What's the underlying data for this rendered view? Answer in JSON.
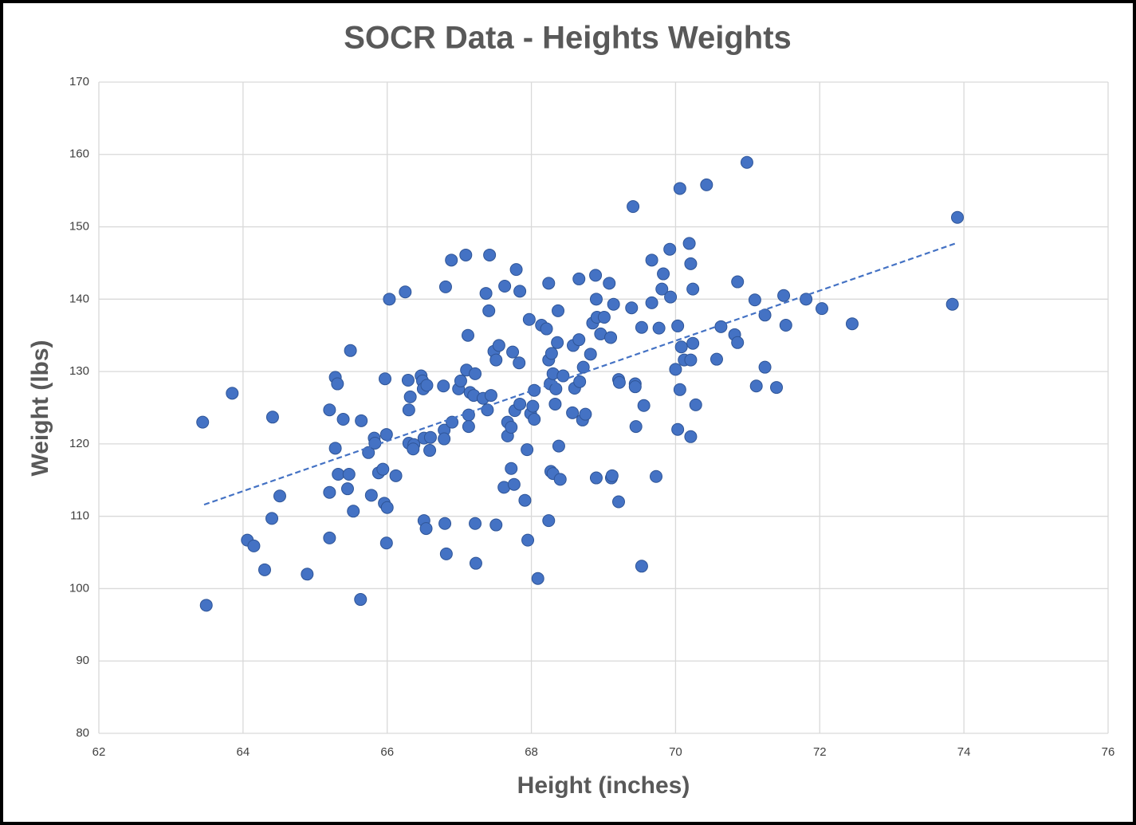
{
  "chart_data": {
    "type": "scatter",
    "title": "SOCR Data - Heights Weights",
    "x_label": "Height (inches)",
    "y_label": "Weight (lbs)",
    "color": "#4472c4",
    "grid": true,
    "xlim": [
      62,
      76
    ],
    "xticks": [
      62,
      64,
      66,
      68,
      70,
      72,
      74,
      76
    ],
    "ylim": [
      80,
      170
    ],
    "yticks": [
      80,
      90,
      100,
      110,
      120,
      130,
      140,
      150,
      160,
      170
    ],
    "x": [
      63.44,
      63.49,
      63.85,
      64.06,
      64.15,
      64.3,
      64.4,
      64.41,
      64.51,
      64.89,
      65.2,
      65.2,
      65.2,
      65.28,
      65.31,
      65.28,
      65.32,
      65.39,
      65.45,
      65.47,
      65.49,
      65.53,
      65.63,
      65.64,
      65.74,
      65.78,
      65.82,
      65.83,
      65.88,
      65.94,
      65.96,
      65.97,
      65.99,
      66.0,
      65.99,
      66.03,
      66.12,
      66.25,
      66.29,
      66.3,
      66.32,
      66.3,
      66.37,
      66.36,
      66.47,
      66.49,
      66.5,
      66.51,
      66.55,
      66.51,
      66.54,
      66.6,
      66.59,
      66.78,
      66.79,
      66.79,
      66.8,
      66.81,
      66.82,
      66.89,
      66.9,
      66.99,
      67.02,
      67.09,
      67.1,
      67.12,
      67.13,
      67.13,
      67.15,
      67.2,
      67.22,
      67.22,
      67.23,
      67.33,
      67.37,
      67.39,
      67.41,
      67.42,
      67.44,
      67.48,
      67.51,
      67.51,
      67.55,
      67.62,
      67.63,
      67.67,
      67.67,
      67.72,
      67.72,
      67.74,
      67.76,
      67.77,
      67.79,
      67.83,
      67.84,
      67.84,
      67.91,
      67.94,
      67.95,
      67.97,
      67.99,
      68.02,
      68.04,
      68.04,
      68.09,
      68.14,
      68.21,
      68.24,
      68.24,
      68.24,
      68.26,
      68.27,
      68.28,
      68.3,
      68.3,
      68.33,
      68.34,
      68.36,
      68.37,
      68.38,
      68.4,
      68.44,
      68.57,
      68.58,
      68.6,
      68.66,
      68.66,
      68.67,
      68.71,
      68.72,
      68.75,
      68.82,
      68.85,
      68.89,
      68.9,
      68.9,
      68.91,
      68.96,
      69.01,
      69.08,
      69.1,
      69.11,
      69.12,
      69.14,
      69.21,
      69.21,
      69.22,
      69.39,
      69.41,
      69.44,
      69.45,
      69.44,
      69.53,
      69.53,
      69.56,
      69.67,
      69.67,
      69.73,
      69.77,
      69.81,
      69.83,
      69.92,
      69.93,
      70.0,
      70.03,
      70.03,
      70.06,
      70.06,
      70.08,
      70.12,
      70.19,
      70.21,
      70.21,
      70.21,
      70.24,
      70.24,
      70.28,
      70.43,
      70.57,
      70.63,
      70.82,
      70.86,
      70.86,
      70.99,
      71.1,
      71.12,
      71.24,
      71.24,
      71.4,
      71.5,
      71.53,
      71.81,
      72.03,
      72.45,
      73.84,
      73.91
    ],
    "values": [
      123.0,
      97.7,
      127.0,
      106.7,
      105.9,
      102.6,
      109.7,
      123.7,
      112.8,
      102.0,
      124.7,
      113.3,
      107.0,
      129.2,
      128.3,
      119.4,
      115.8,
      123.4,
      113.8,
      115.8,
      132.9,
      110.7,
      98.5,
      123.2,
      118.8,
      112.9,
      120.8,
      120.1,
      116.0,
      116.5,
      111.8,
      129.0,
      121.3,
      111.2,
      106.3,
      140.0,
      115.6,
      141.0,
      128.8,
      124.7,
      126.5,
      120.1,
      119.9,
      119.3,
      129.4,
      128.7,
      127.6,
      120.8,
      128.1,
      109.4,
      108.3,
      120.9,
      119.1,
      128.0,
      121.9,
      120.7,
      109.0,
      141.7,
      104.8,
      145.4,
      123.0,
      127.6,
      128.7,
      146.1,
      130.2,
      135.0,
      124.0,
      122.4,
      127.1,
      126.7,
      129.7,
      109.0,
      103.5,
      126.3,
      140.8,
      124.7,
      138.4,
      146.1,
      126.7,
      132.8,
      131.6,
      108.8,
      133.6,
      114.0,
      141.8,
      123.0,
      121.1,
      122.3,
      116.6,
      132.7,
      114.4,
      124.6,
      144.1,
      131.2,
      141.1,
      125.5,
      112.2,
      119.2,
      106.7,
      137.2,
      124.2,
      125.2,
      127.4,
      123.4,
      101.4,
      136.4,
      135.9,
      142.2,
      131.6,
      109.4,
      128.3,
      116.2,
      132.5,
      115.9,
      129.7,
      125.5,
      127.6,
      134.0,
      138.4,
      119.7,
      115.1,
      129.4,
      124.3,
      133.6,
      127.7,
      142.8,
      134.4,
      128.6,
      123.3,
      130.6,
      124.1,
      132.4,
      136.7,
      143.3,
      140.0,
      115.3,
      137.5,
      135.2,
      137.5,
      142.2,
      134.7,
      115.3,
      115.6,
      139.3,
      112.0,
      128.9,
      128.5,
      138.8,
      152.8,
      128.3,
      122.4,
      127.9,
      136.1,
      103.1,
      125.3,
      145.4,
      139.5,
      115.5,
      136.0,
      141.4,
      143.5,
      146.9,
      140.3,
      130.3,
      136.3,
      122.0,
      155.3,
      127.5,
      133.4,
      131.6,
      147.7,
      144.9,
      131.6,
      121.0,
      133.9,
      141.4,
      125.4,
      155.8,
      131.7,
      136.2,
      135.1,
      134.0,
      142.4,
      158.9,
      139.9,
      128.0,
      137.8,
      130.6,
      127.8,
      140.5,
      136.4,
      140.0,
      138.7,
      136.6,
      139.3,
      151.3
    ],
    "trendline": {
      "x": [
        63.46,
        73.91
      ],
      "values": [
        111.6,
        147.8
      ],
      "color": "#4472c4",
      "dashed": true
    }
  }
}
